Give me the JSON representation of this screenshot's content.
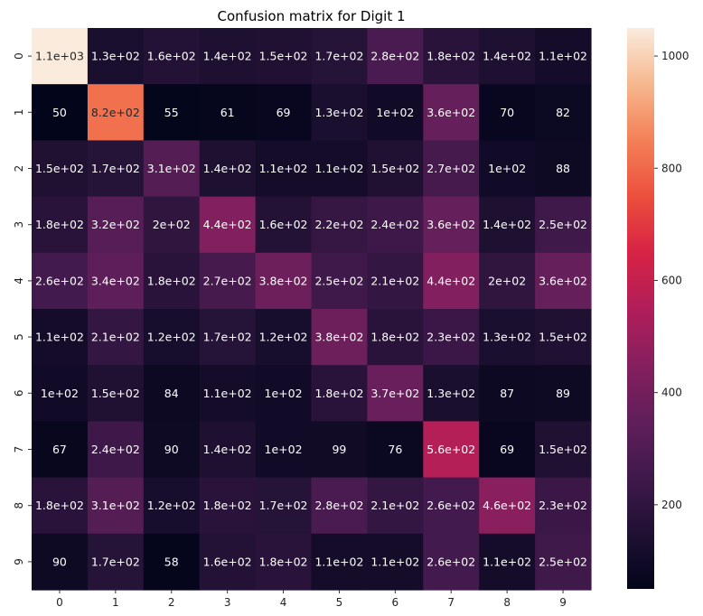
{
  "chart_data": {
    "type": "heatmap",
    "title": "Confusion matrix for Digit 1",
    "xlabel": "",
    "ylabel": "",
    "x_ticks": [
      "0",
      "1",
      "2",
      "3",
      "4",
      "5",
      "6",
      "7",
      "8",
      "9"
    ],
    "y_ticks": [
      "0",
      "1",
      "2",
      "3",
      "4",
      "5",
      "6",
      "7",
      "8",
      "9"
    ],
    "values": [
      [
        1100,
        130,
        160,
        140,
        150,
        170,
        280,
        180,
        140,
        110
      ],
      [
        50,
        820,
        55,
        61,
        69,
        130,
        100,
        360,
        70,
        82
      ],
      [
        150,
        170,
        310,
        140,
        110,
        110,
        150,
        270,
        100,
        88
      ],
      [
        180,
        320,
        200,
        440,
        160,
        220,
        240,
        360,
        140,
        250
      ],
      [
        260,
        340,
        180,
        270,
        380,
        250,
        210,
        440,
        200,
        360
      ],
      [
        110,
        210,
        120,
        170,
        120,
        380,
        180,
        230,
        130,
        150
      ],
      [
        100,
        150,
        84,
        110,
        100,
        180,
        370,
        130,
        87,
        89
      ],
      [
        67,
        240,
        90,
        140,
        100,
        99,
        76,
        560,
        69,
        150
      ],
      [
        180,
        310,
        120,
        180,
        170,
        280,
        210,
        260,
        460,
        230
      ],
      [
        90,
        170,
        58,
        160,
        180,
        110,
        110,
        260,
        110,
        250
      ]
    ],
    "annotations": [
      [
        "1.1e+03",
        "1.3e+02",
        "1.6e+02",
        "1.4e+02",
        "1.5e+02",
        "1.7e+02",
        "2.8e+02",
        "1.8e+02",
        "1.4e+02",
        "1.1e+02"
      ],
      [
        "50",
        "8.2e+02",
        "55",
        "61",
        "69",
        "1.3e+02",
        "1e+02",
        "3.6e+02",
        "70",
        "82"
      ],
      [
        "1.5e+02",
        "1.7e+02",
        "3.1e+02",
        "1.4e+02",
        "1.1e+02",
        "1.1e+02",
        "1.5e+02",
        "2.7e+02",
        "1e+02",
        "88"
      ],
      [
        "1.8e+02",
        "3.2e+02",
        "2e+02",
        "4.4e+02",
        "1.6e+02",
        "2.2e+02",
        "2.4e+02",
        "3.6e+02",
        "1.4e+02",
        "2.5e+02"
      ],
      [
        "2.6e+02",
        "3.4e+02",
        "1.8e+02",
        "2.7e+02",
        "3.8e+02",
        "2.5e+02",
        "2.1e+02",
        "4.4e+02",
        "2e+02",
        "3.6e+02"
      ],
      [
        "1.1e+02",
        "2.1e+02",
        "1.2e+02",
        "1.7e+02",
        "1.2e+02",
        "3.8e+02",
        "1.8e+02",
        "2.3e+02",
        "1.3e+02",
        "1.5e+02"
      ],
      [
        "1e+02",
        "1.5e+02",
        "84",
        "1.1e+02",
        "1e+02",
        "1.8e+02",
        "3.7e+02",
        "1.3e+02",
        "87",
        "89"
      ],
      [
        "67",
        "2.4e+02",
        "90",
        "1.4e+02",
        "1e+02",
        "99",
        "76",
        "5.6e+02",
        "69",
        "1.5e+02"
      ],
      [
        "1.8e+02",
        "3.1e+02",
        "1.2e+02",
        "1.8e+02",
        "1.7e+02",
        "2.8e+02",
        "2.1e+02",
        "2.6e+02",
        "4.6e+02",
        "2.3e+02"
      ],
      [
        "90",
        "1.7e+02",
        "58",
        "1.6e+02",
        "1.8e+02",
        "1.1e+02",
        "1.1e+02",
        "2.6e+02",
        "1.1e+02",
        "2.5e+02"
      ]
    ],
    "colormap": "rocket",
    "color_range": [
      50,
      1050
    ],
    "colorbar_ticks": [
      200,
      400,
      600,
      800,
      1000
    ],
    "colorbar_tick_labels": [
      "200",
      "400",
      "600",
      "800",
      "1000"
    ]
  }
}
